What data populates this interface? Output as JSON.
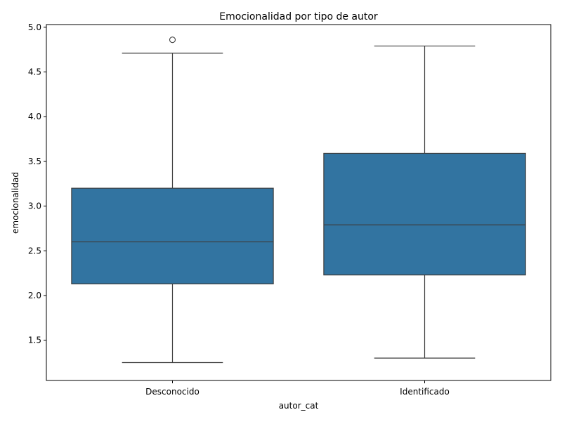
{
  "chart_data": {
    "type": "box",
    "title": "Emocionalidad por tipo de autor",
    "xlabel": "autor_cat",
    "ylabel": "emocionalidad",
    "ylim": [
      1.05,
      5.03
    ],
    "yticks": [
      1.5,
      2.0,
      2.5,
      3.0,
      3.5,
      4.0,
      4.5,
      5.0
    ],
    "ytick_labels": [
      "1.5",
      "2.0",
      "2.5",
      "3.0",
      "3.5",
      "4.0",
      "4.5",
      "5.0"
    ],
    "categories": [
      "Desconocido",
      "Identificado"
    ],
    "boxes": [
      {
        "category": "Desconocido",
        "whisker_low": 1.25,
        "q1": 2.13,
        "median": 2.6,
        "q3": 3.2,
        "whisker_high": 4.71,
        "outliers": [
          4.86
        ]
      },
      {
        "category": "Identificado",
        "whisker_low": 1.3,
        "q1": 2.23,
        "median": 2.79,
        "q3": 3.59,
        "whisker_high": 4.79,
        "outliers": []
      }
    ],
    "grid": false,
    "legend": "none"
  },
  "colors": {
    "box_fill": "#3274a1",
    "lines": "#3d3d3d",
    "axes": "#000000",
    "background": "#ffffff"
  }
}
